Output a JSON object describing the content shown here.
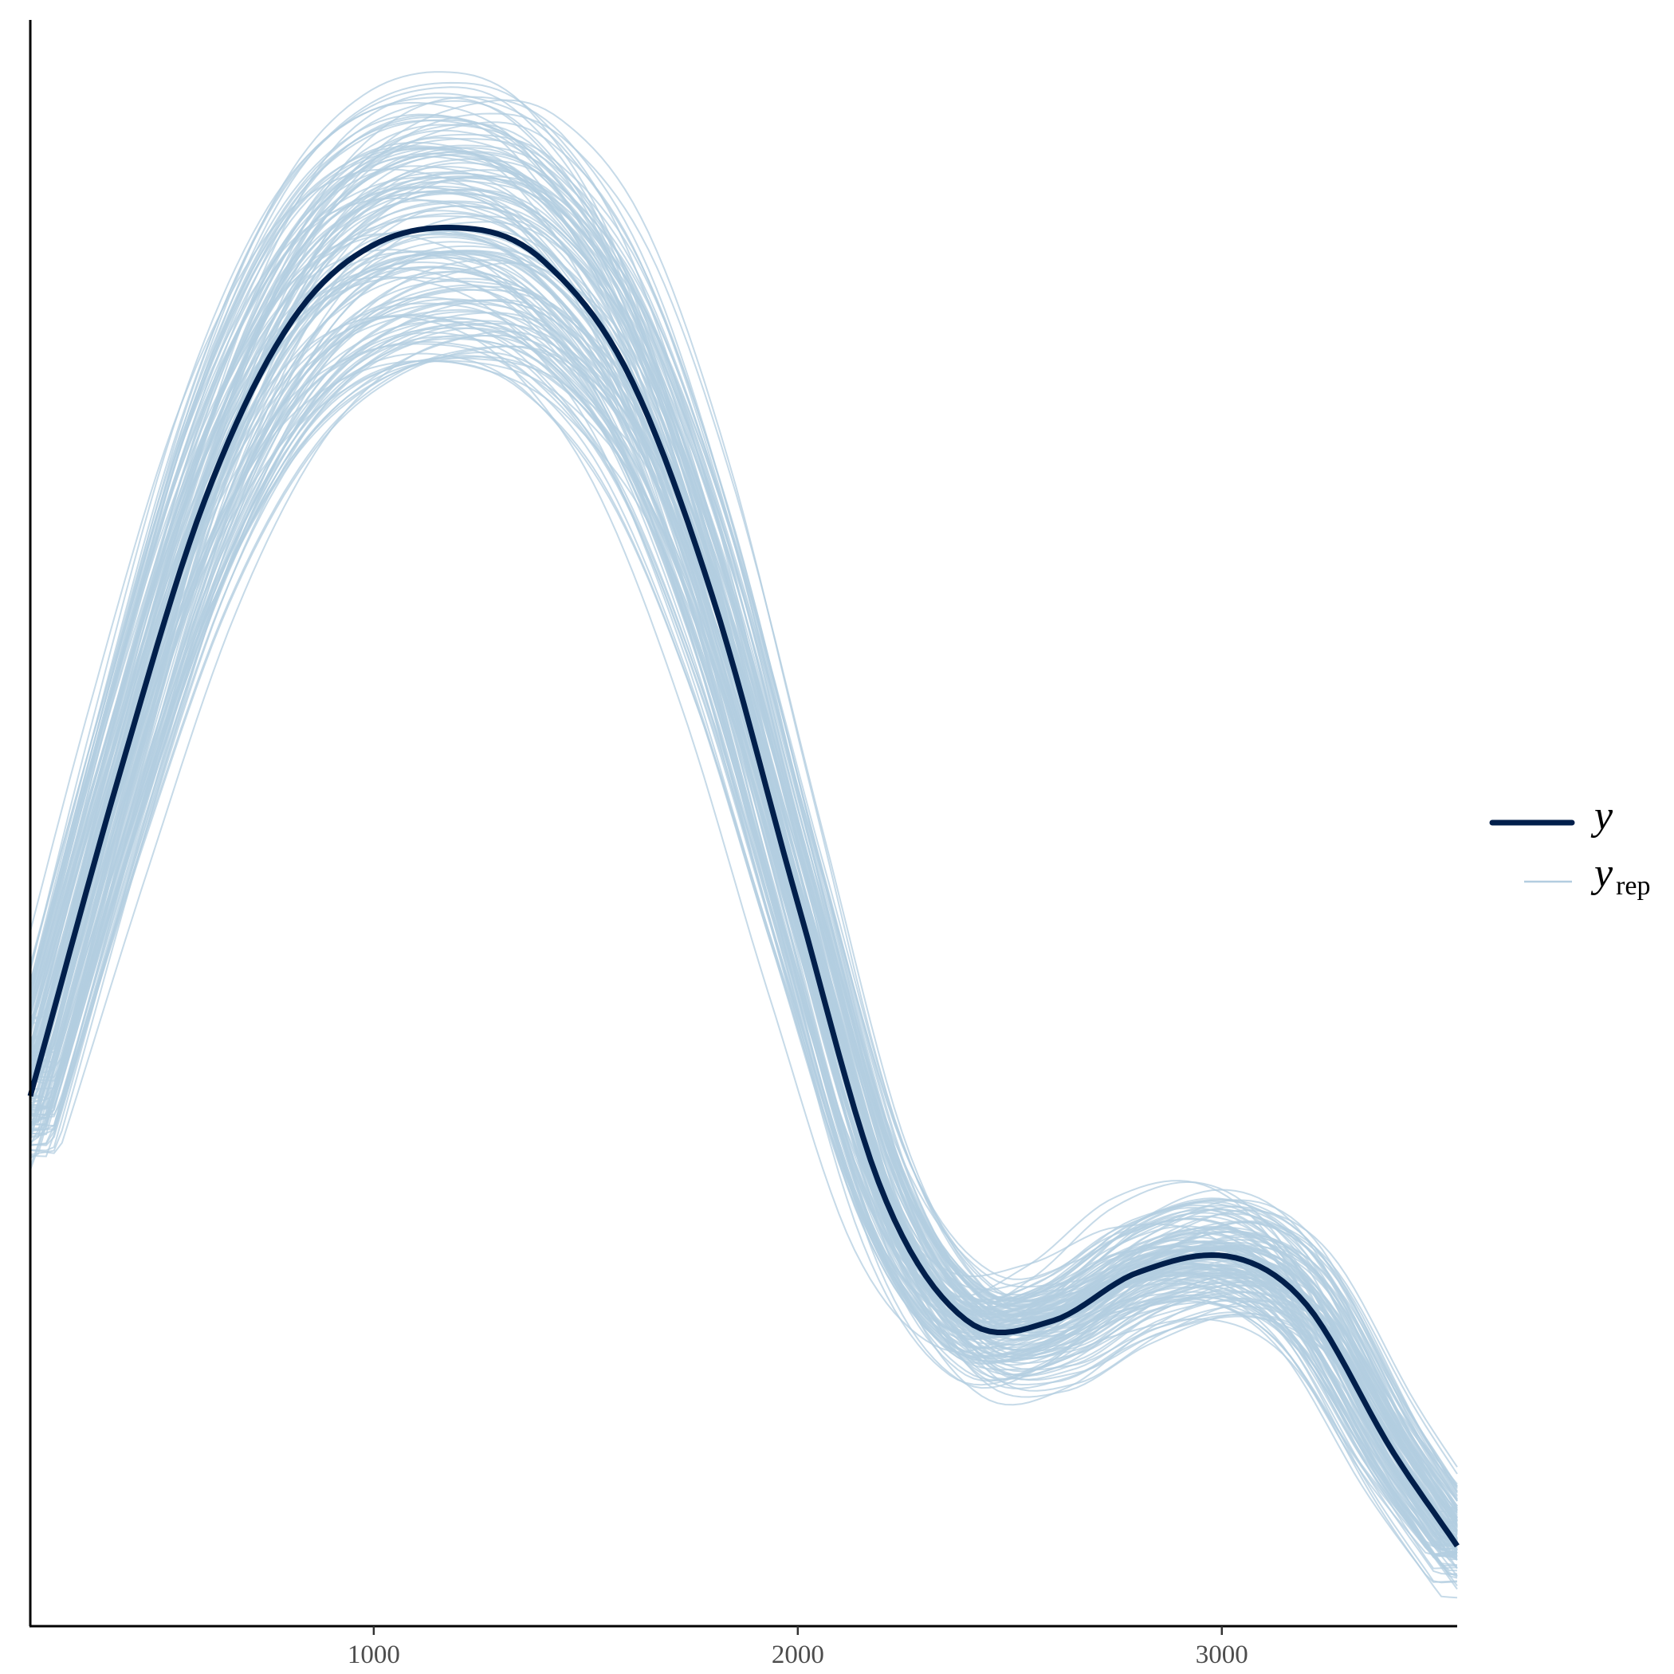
{
  "chart_data": {
    "type": "line",
    "title": "",
    "xlabel": "",
    "ylabel": "",
    "xlim": [
      190,
      3555
    ],
    "ylim": [
      0,
      1.0
    ],
    "x_ticks": [
      1000,
      2000,
      3000
    ],
    "x_tick_labels": [
      "1000",
      "2000",
      "3000"
    ],
    "y_axis_labels_shown": false,
    "grid": false,
    "legend_position": "right",
    "colors": {
      "y": "#011f4b",
      "yrep": "#b3cde0"
    },
    "observed": {
      "name_main": "y",
      "name_sub": "",
      "x": [
        190,
        400,
        600,
        800,
        1000,
        1230,
        1400,
        1600,
        1800,
        2000,
        2200,
        2400,
        2600,
        2800,
        3020,
        3200,
        3400,
        3555
      ],
      "y": [
        0.33,
        0.53,
        0.7,
        0.81,
        0.86,
        0.87,
        0.85,
        0.78,
        0.64,
        0.45,
        0.27,
        0.19,
        0.19,
        0.22,
        0.23,
        0.2,
        0.11,
        0.05
      ]
    },
    "replicated": {
      "name_main": "y",
      "name_sub": "rep",
      "draws": 150,
      "note_visible": false
    }
  }
}
